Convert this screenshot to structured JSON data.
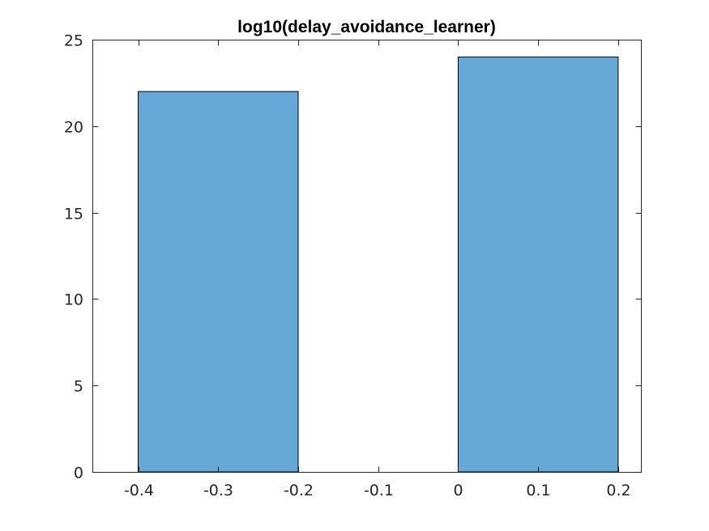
{
  "chart_data": {
    "type": "bar",
    "title": "log10(delay_avoidance_learner)",
    "xlabel": "",
    "ylabel": "",
    "xlim": [
      -0.4,
      0.2
    ],
    "ylim": [
      0,
      25
    ],
    "x_ticks": [
      -0.4,
      -0.3,
      -0.2,
      -0.1,
      0,
      0.1,
      0.2
    ],
    "x_tick_labels": [
      "-0.4",
      "-0.3",
      "-0.2",
      "-0.1",
      "0",
      "0.1",
      "0.2"
    ],
    "y_ticks": [
      0,
      5,
      10,
      15,
      20,
      25
    ],
    "y_tick_labels": [
      "0",
      "5",
      "10",
      "15",
      "20",
      "25"
    ],
    "bins": [
      {
        "from": -0.4,
        "to": -0.2,
        "count": 22
      },
      {
        "from": 0.0,
        "to": 0.2,
        "count": 24
      }
    ],
    "bar_color": "#66A9D6",
    "edge_color": "#000000",
    "grid": false,
    "box": true
  }
}
